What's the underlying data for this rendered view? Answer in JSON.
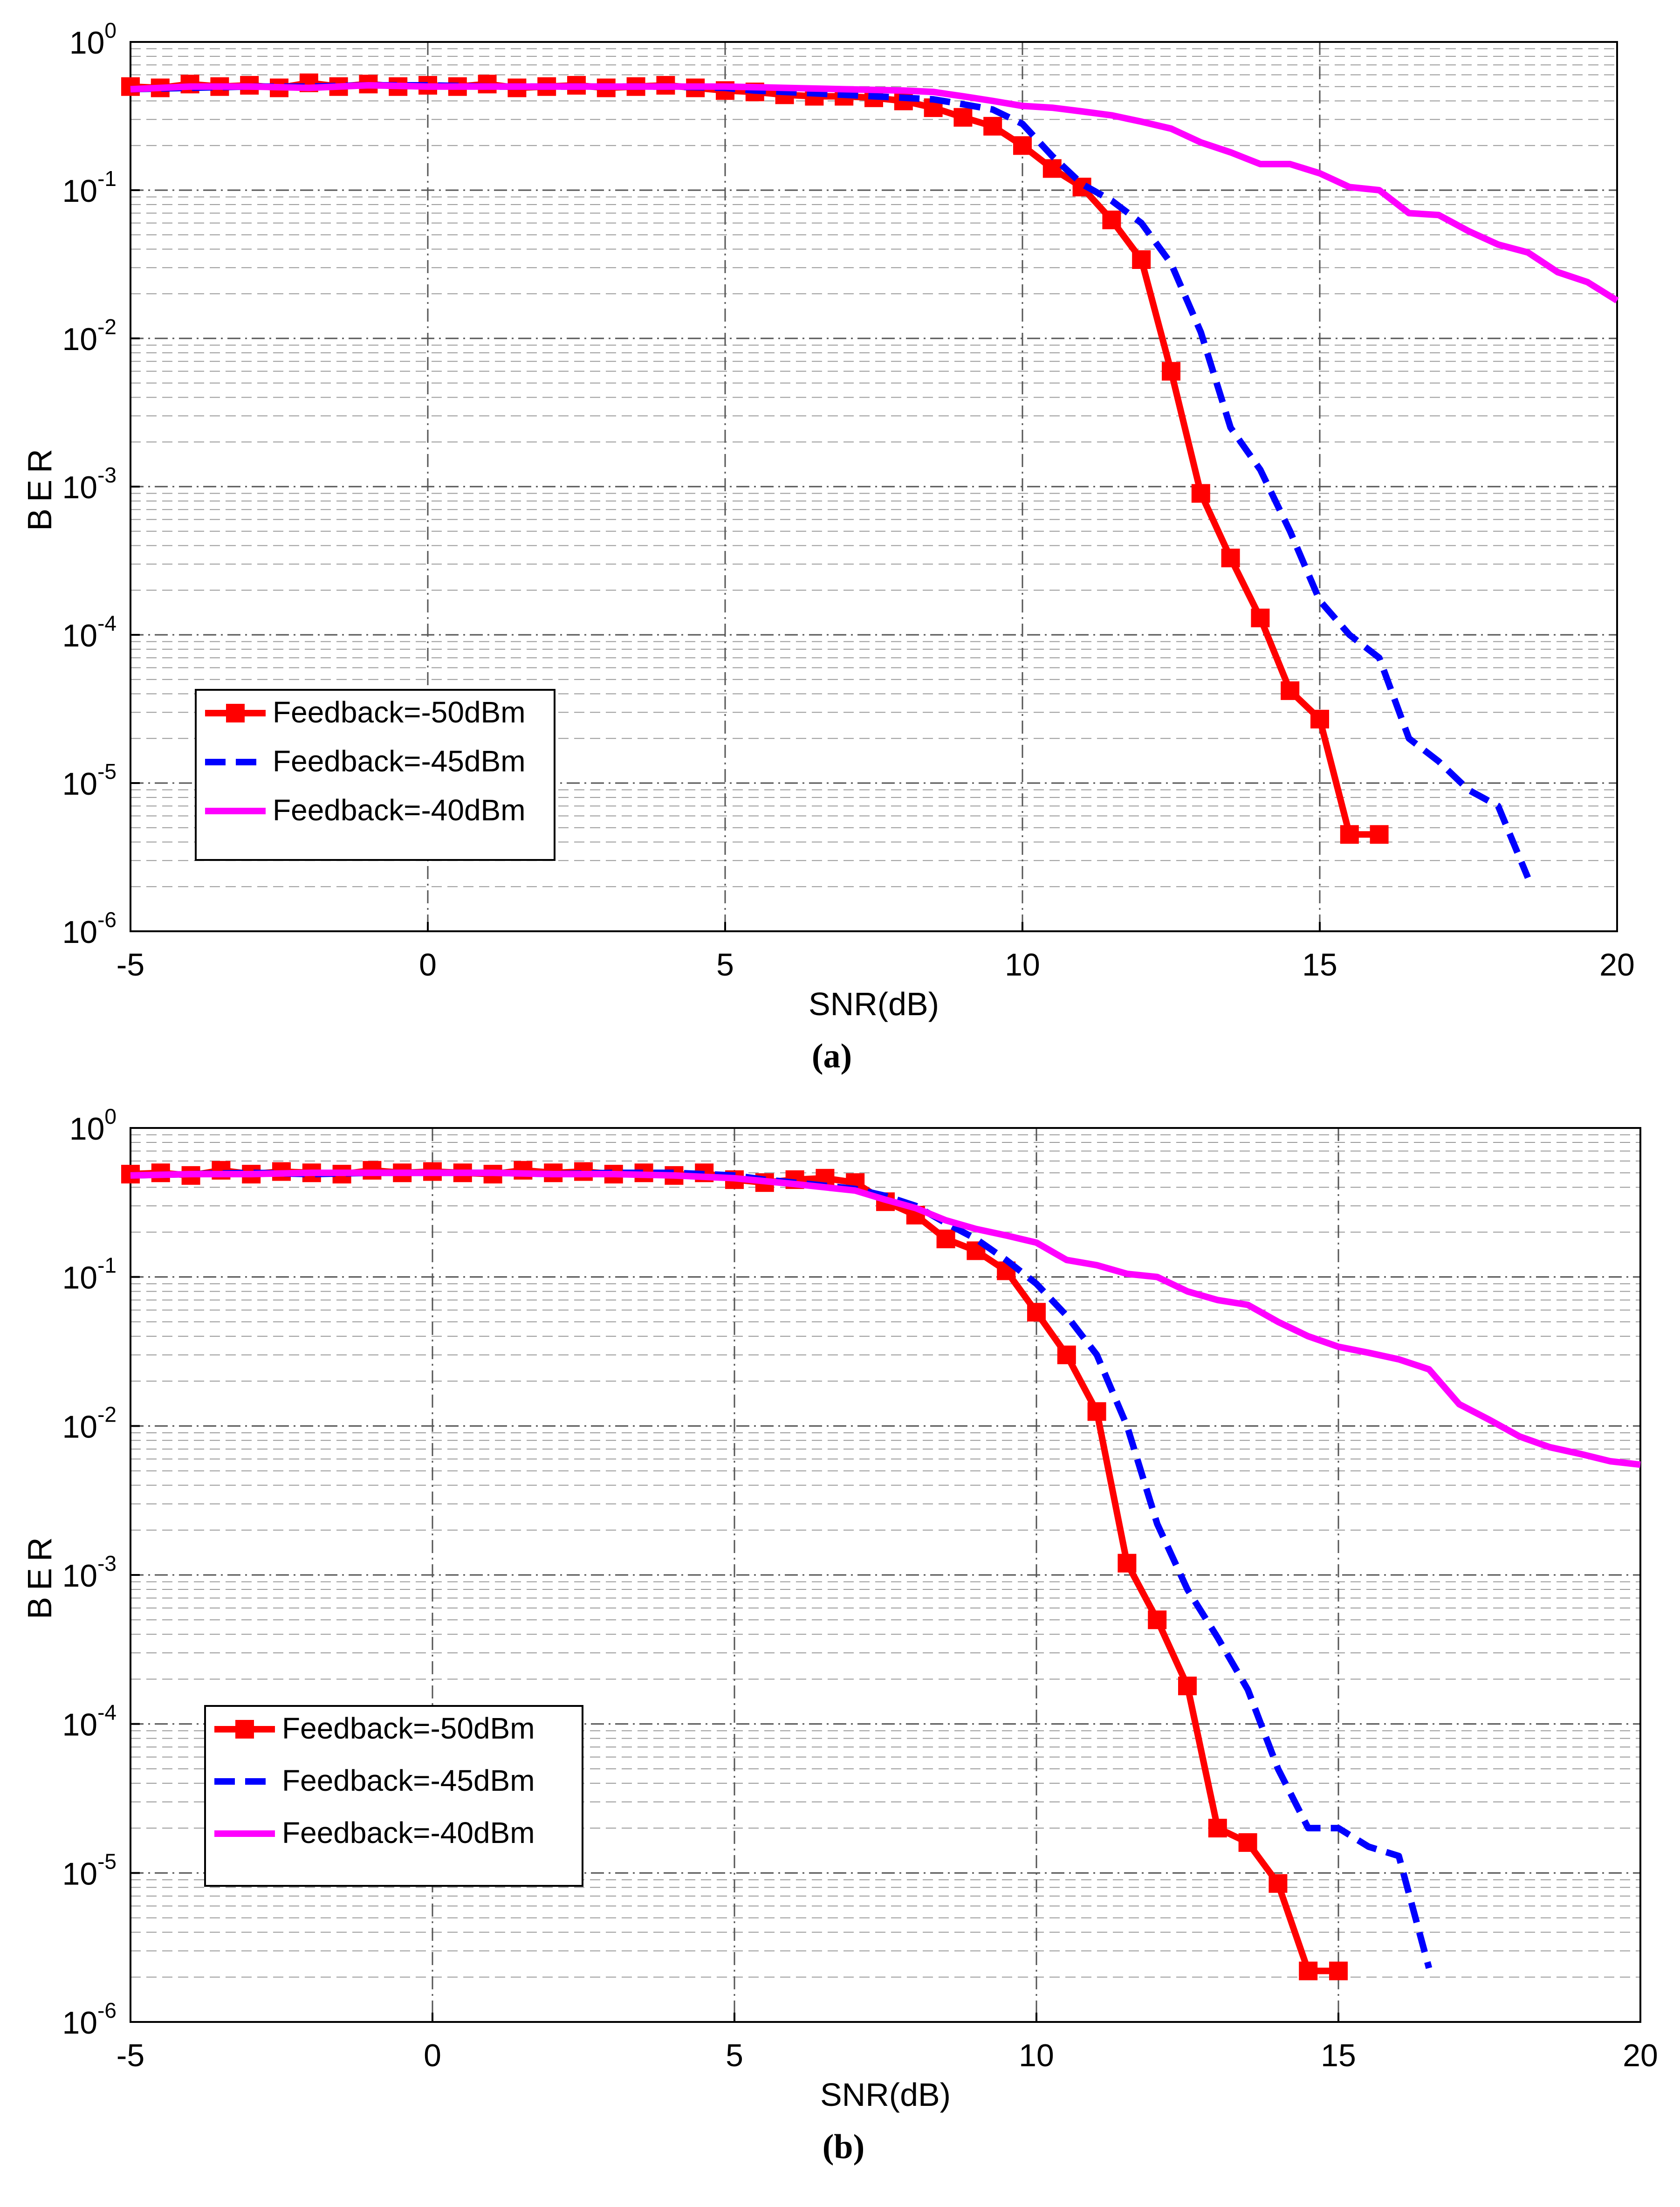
{
  "chart_data": [
    {
      "type": "line",
      "panel_label": "(a)",
      "xlabel": "SNR(dB)",
      "ylabel": "BER",
      "xlim": [
        -5,
        20
      ],
      "ylim": [
        1e-06,
        1
      ],
      "yscale": "log",
      "x_ticks": [
        "-5",
        "0",
        "5",
        "10",
        "15",
        "20"
      ],
      "y_ticks": [
        {
          "base": "10",
          "exp": "-6"
        },
        {
          "base": "10",
          "exp": "-5"
        },
        {
          "base": "10",
          "exp": "-4"
        },
        {
          "base": "10",
          "exp": "-3"
        },
        {
          "base": "10",
          "exp": "-2"
        },
        {
          "base": "10",
          "exp": "-1"
        },
        {
          "base": "10",
          "exp": "0"
        }
      ],
      "grid": true,
      "legend_position": "lower-left",
      "series": [
        {
          "name": "Feedback=-50dBm",
          "color": "#ff0000",
          "style": "solid",
          "marker": "square",
          "x": [
            -5,
            -4.5,
            -4,
            -3.5,
            -3,
            -2.5,
            -2,
            -1.5,
            -1,
            -0.5,
            0,
            0.5,
            1,
            1.5,
            2,
            2.5,
            3,
            3.5,
            4,
            4.5,
            5,
            5.5,
            6,
            6.5,
            7,
            7.5,
            8,
            8.5,
            9,
            9.5,
            10,
            10.5,
            11,
            11.5,
            12,
            12.5,
            13,
            13.5,
            14,
            14.5,
            15,
            15.5,
            16
          ],
          "y": [
            0.5,
            0.49,
            0.52,
            0.5,
            0.51,
            0.49,
            0.53,
            0.5,
            0.52,
            0.5,
            0.51,
            0.5,
            0.52,
            0.49,
            0.5,
            0.51,
            0.49,
            0.5,
            0.51,
            0.49,
            0.47,
            0.46,
            0.44,
            0.43,
            0.43,
            0.42,
            0.4,
            0.36,
            0.31,
            0.27,
            0.2,
            0.14,
            0.105,
            0.063,
            0.034,
            0.006,
            0.0009,
            0.00033,
            0.00013,
            4.2e-05,
            2.7e-05,
            4.5e-06,
            4.5e-06
          ]
        },
        {
          "name": "Feedback=-45dBm",
          "color": "#0000ff",
          "style": "dashed",
          "marker": "none",
          "x": [
            -5,
            -4,
            -3,
            -2,
            -1,
            0,
            1,
            2,
            3,
            4,
            5,
            5.5,
            6,
            6.5,
            7,
            7.5,
            8,
            8.5,
            9,
            9.5,
            10,
            10.5,
            11,
            11.5,
            12,
            12.5,
            13,
            13.5,
            14,
            14.5,
            15,
            15.5,
            16,
            16.5,
            17,
            17.5,
            18,
            18.5
          ],
          "y": [
            0.48,
            0.49,
            0.5,
            0.5,
            0.51,
            0.51,
            0.5,
            0.5,
            0.5,
            0.5,
            0.49,
            0.47,
            0.46,
            0.45,
            0.44,
            0.43,
            0.42,
            0.41,
            0.38,
            0.35,
            0.28,
            0.17,
            0.11,
            0.085,
            0.06,
            0.032,
            0.011,
            0.0025,
            0.0013,
            0.0005,
            0.00017,
            0.0001,
            7e-05,
            2e-05,
            1.4e-05,
            9e-06,
            7e-06,
            2.3e-06
          ]
        },
        {
          "name": "Feedback=-40dBm",
          "color": "#ff00ff",
          "style": "solid",
          "marker": "none",
          "x": [
            -5,
            -4,
            -3,
            -2,
            -1,
            0,
            1,
            2,
            3,
            4,
            5,
            6,
            7,
            8,
            8.5,
            9,
            9.5,
            10,
            10.5,
            11,
            11.5,
            12,
            12.5,
            13,
            13.5,
            14,
            14.5,
            15,
            15.5,
            16,
            16.5,
            17,
            17.5,
            18,
            18.5,
            19,
            19.5,
            20
          ],
          "y": [
            0.48,
            0.5,
            0.5,
            0.49,
            0.51,
            0.5,
            0.5,
            0.5,
            0.5,
            0.5,
            0.5,
            0.49,
            0.48,
            0.47,
            0.46,
            0.43,
            0.4,
            0.37,
            0.36,
            0.34,
            0.32,
            0.29,
            0.26,
            0.21,
            0.18,
            0.15,
            0.15,
            0.13,
            0.105,
            0.1,
            0.07,
            0.068,
            0.053,
            0.043,
            0.038,
            0.028,
            0.024,
            0.018
          ]
        }
      ]
    },
    {
      "type": "line",
      "panel_label": "(b)",
      "xlabel": "SNR(dB)",
      "ylabel": "BER",
      "xlim": [
        -5,
        20
      ],
      "ylim": [
        1e-06,
        1
      ],
      "yscale": "log",
      "x_ticks": [
        "-5",
        "0",
        "5",
        "10",
        "15",
        "20"
      ],
      "y_ticks": [
        {
          "base": "10",
          "exp": "-6"
        },
        {
          "base": "10",
          "exp": "-5"
        },
        {
          "base": "10",
          "exp": "-4"
        },
        {
          "base": "10",
          "exp": "-3"
        },
        {
          "base": "10",
          "exp": "-2"
        },
        {
          "base": "10",
          "exp": "-1"
        },
        {
          "base": "10",
          "exp": "0"
        }
      ],
      "grid": true,
      "legend_position": "lower-left",
      "series": [
        {
          "name": "Feedback=-50dBm",
          "color": "#ff0000",
          "style": "solid",
          "marker": "square",
          "x": [
            -5,
            -4.5,
            -4,
            -3.5,
            -3,
            -2.5,
            -2,
            -1.5,
            -1,
            -0.5,
            0,
            0.5,
            1,
            1.5,
            2,
            2.5,
            3,
            3.5,
            4,
            4.5,
            5,
            5.5,
            6,
            6.5,
            7,
            7.5,
            8,
            8.5,
            9,
            9.5,
            10,
            10.5,
            11,
            11.5,
            12,
            12.5,
            13,
            13.5,
            14,
            14.5,
            15
          ],
          "y": [
            0.49,
            0.5,
            0.48,
            0.52,
            0.49,
            0.51,
            0.5,
            0.49,
            0.52,
            0.5,
            0.51,
            0.5,
            0.49,
            0.52,
            0.5,
            0.51,
            0.49,
            0.5,
            0.48,
            0.5,
            0.45,
            0.43,
            0.45,
            0.46,
            0.43,
            0.32,
            0.26,
            0.18,
            0.15,
            0.11,
            0.058,
            0.03,
            0.0125,
            0.0012,
            0.0005,
            0.00018,
            2e-05,
            1.6e-05,
            8.5e-06,
            2.2e-06,
            2.2e-06
          ]
        },
        {
          "name": "Feedback=-45dBm",
          "color": "#0000ff",
          "style": "dashed",
          "marker": "none",
          "x": [
            -5,
            -4,
            -3,
            -2,
            -1,
            0,
            1,
            2,
            3,
            4,
            5,
            5.5,
            6,
            6.5,
            7,
            7.5,
            8,
            8.5,
            9,
            9.5,
            10,
            10.5,
            11,
            11.5,
            12,
            12.5,
            13,
            13.5,
            14,
            14.5,
            15,
            15.5,
            16,
            16.5
          ],
          "y": [
            0.48,
            0.49,
            0.5,
            0.49,
            0.5,
            0.5,
            0.5,
            0.49,
            0.5,
            0.5,
            0.48,
            0.45,
            0.43,
            0.41,
            0.39,
            0.35,
            0.3,
            0.23,
            0.18,
            0.13,
            0.09,
            0.055,
            0.03,
            0.01,
            0.0022,
            0.0008,
            0.00038,
            0.00017,
            5e-05,
            2e-05,
            2e-05,
            1.5e-05,
            1.3e-05,
            2.3e-06
          ]
        },
        {
          "name": "Feedback=-40dBm",
          "color": "#ff00ff",
          "style": "solid",
          "marker": "none",
          "x": [
            -5,
            -4,
            -3,
            -2,
            -1,
            0,
            1,
            2,
            3,
            4,
            5,
            6,
            7,
            7.5,
            8,
            8.5,
            9,
            9.5,
            10,
            10.5,
            11,
            11.5,
            12,
            12.5,
            13,
            13.5,
            14,
            14.5,
            15,
            15.5,
            16,
            16.5,
            17,
            17.5,
            18,
            18.5,
            19,
            19.5,
            20
          ],
          "y": [
            0.48,
            0.49,
            0.49,
            0.5,
            0.5,
            0.5,
            0.5,
            0.49,
            0.49,
            0.48,
            0.46,
            0.42,
            0.38,
            0.33,
            0.29,
            0.24,
            0.21,
            0.19,
            0.17,
            0.13,
            0.12,
            0.105,
            0.1,
            0.08,
            0.07,
            0.065,
            0.05,
            0.04,
            0.034,
            0.031,
            0.028,
            0.024,
            0.014,
            0.011,
            0.0085,
            0.0072,
            0.0065,
            0.0058,
            0.0055
          ]
        }
      ]
    }
  ]
}
